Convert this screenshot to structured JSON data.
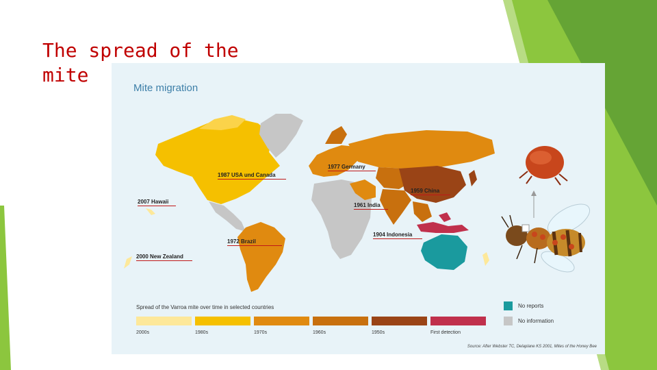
{
  "slide": {
    "title": "The spread of the mite"
  },
  "panel": {
    "title": "Mite migration",
    "labels": [
      {
        "id": "usa-canada",
        "text": "1987 USA und Canada"
      },
      {
        "id": "hawaii",
        "text": "2007 Hawaii"
      },
      {
        "id": "brazil",
        "text": "1972 Brazil"
      },
      {
        "id": "new-zealand",
        "text": "2000 New Zealand"
      },
      {
        "id": "germany",
        "text": "1977 Germany"
      },
      {
        "id": "china",
        "text": "1959 China"
      },
      {
        "id": "india",
        "text": "1961 India"
      },
      {
        "id": "indonesia",
        "text": "1904 Indonesia"
      }
    ],
    "legend": {
      "title": "Spread of the Varroa mite over time in selected countries",
      "periods": [
        {
          "label": "2000s",
          "color": "#fde89a"
        },
        {
          "label": "1980s",
          "color": "#f5c000"
        },
        {
          "label": "1970s",
          "color": "#e08a10"
        },
        {
          "label": "1960s",
          "color": "#c8700e"
        },
        {
          "label": "1950s",
          "color": "#9a4416"
        },
        {
          "label": "First detection",
          "color": "#c0304c"
        }
      ],
      "keys": [
        {
          "label": "No reports",
          "color": "#1a9a9e"
        },
        {
          "label": "No information",
          "color": "#c6c6c6"
        }
      ]
    },
    "source": "Source: After Webster TC, Delaplane KS 2001, Mites of the Honey Bee"
  }
}
